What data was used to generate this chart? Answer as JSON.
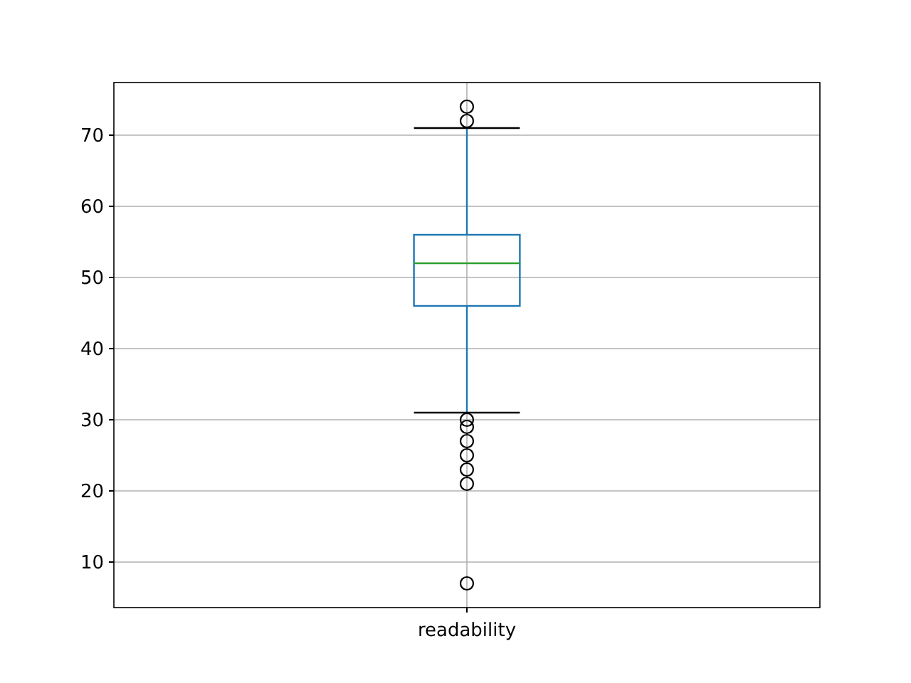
{
  "chart_data": {
    "type": "box",
    "categories": [
      "readability"
    ],
    "boxes": [
      {
        "low": 31,
        "q1": 46,
        "median": 52,
        "q3": 56,
        "high": 71,
        "outliers": [
          74,
          72,
          30,
          29,
          27,
          25,
          23,
          21,
          7
        ]
      }
    ],
    "ylim": [
      3.6,
      77.4
    ],
    "yticks": [
      10,
      20,
      30,
      40,
      50,
      60,
      70
    ],
    "grid": true,
    "color": "#1f77b4"
  }
}
